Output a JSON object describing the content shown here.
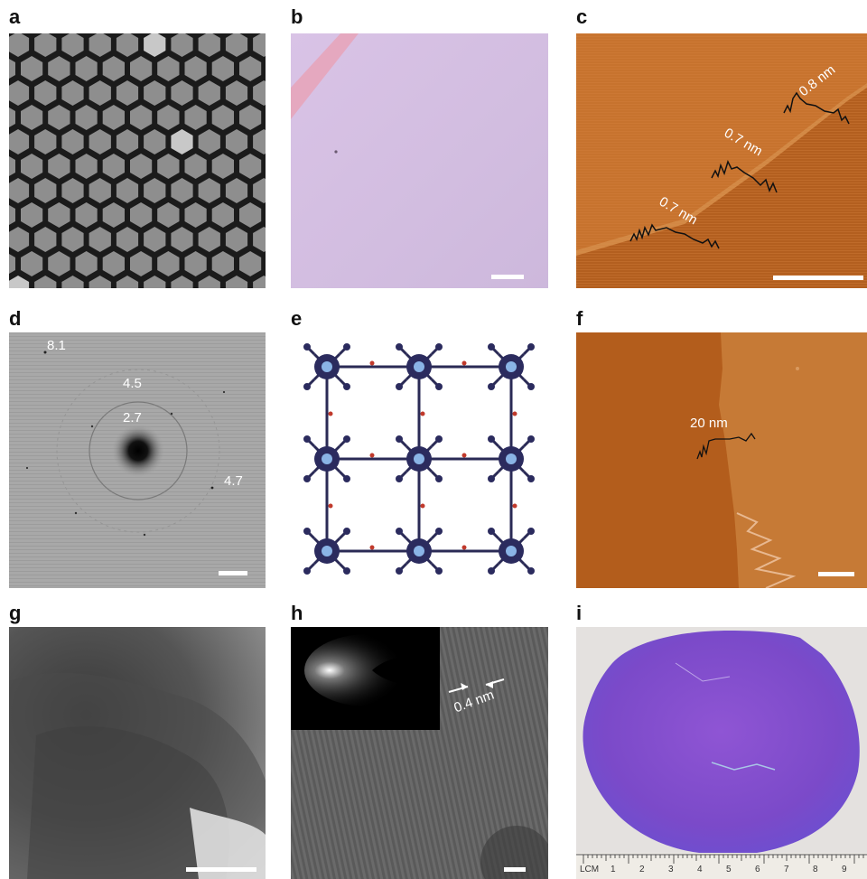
{
  "panels": [
    {
      "label": "a"
    },
    {
      "label": "b"
    },
    {
      "label": "c"
    },
    {
      "label": "d"
    },
    {
      "label": "e"
    },
    {
      "label": "f"
    },
    {
      "label": "g"
    },
    {
      "label": "h"
    },
    {
      "label": "i"
    }
  ],
  "c": {
    "annotations": [
      "0.8 nm",
      "0.7 nm",
      "0.7 nm"
    ]
  },
  "d": {
    "annotations": [
      "8.1",
      "4.5",
      "2.7",
      "4.7"
    ]
  },
  "f": {
    "annotation": "20 nm"
  },
  "h": {
    "annotation": "0.4 nm"
  },
  "i": {
    "ruler_label": "LCM",
    "ruler_numbers": [
      "1",
      "2",
      "3",
      "4",
      "5",
      "6",
      "7",
      "8",
      "9"
    ]
  },
  "colors": {
    "sem_bg": "#1b1b1b",
    "sem_hex": "#8e8e8e",
    "optical_bg": "#d4bfe0",
    "afm_c": "#c7732e",
    "afm_f": "#b96522",
    "wafer": "#8a4fd0"
  }
}
